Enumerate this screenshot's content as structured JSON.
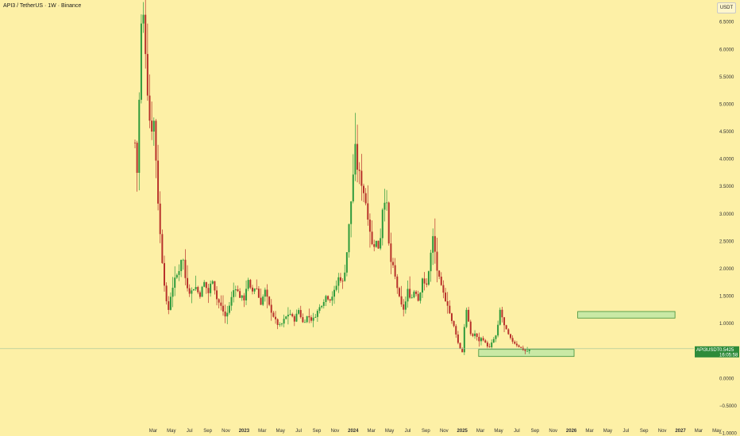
{
  "header": {
    "title": "API3 / TetherUS · 1W · Binance",
    "unit_label": "USDT"
  },
  "colors": {
    "background": "#fdf0a6",
    "up": "#2e9a3c",
    "down": "#b8322b",
    "zone_fill": "#c9e9a5",
    "zone_stroke": "#3d8f3a",
    "price_line": "#9ec49a",
    "price_label": "#2e8b3a"
  },
  "chart_data": {
    "type": "candlestick",
    "symbol": "API3USDT",
    "last_price": "0.5425",
    "countdown": "16:05:58",
    "last_price_value": 0.5425,
    "ylim": [
      -1.05,
      6.9
    ],
    "yticks": [
      {
        "v": 6.5,
        "label": "6.5000"
      },
      {
        "v": 6.0,
        "label": "6.0000"
      },
      {
        "v": 5.5,
        "label": "5.5000"
      },
      {
        "v": 5.0,
        "label": "5.0000"
      },
      {
        "v": 4.5,
        "label": "4.5000"
      },
      {
        "v": 4.0,
        "label": "4.0000"
      },
      {
        "v": 3.5,
        "label": "3.5000"
      },
      {
        "v": 3.0,
        "label": "3.0000"
      },
      {
        "v": 2.5,
        "label": "2.5000"
      },
      {
        "v": 2.0,
        "label": "2.0000"
      },
      {
        "v": 1.5,
        "label": "1.5000"
      },
      {
        "v": 1.0,
        "label": "1.0000"
      },
      {
        "v": 0.0,
        "label": "0.0000"
      },
      {
        "v": -0.5,
        "label": "−0.5000"
      },
      {
        "v": -1.0,
        "label": "−1.0000"
      }
    ],
    "xticks": [
      {
        "label": "Mar",
        "m": 2,
        "bold": false
      },
      {
        "label": "May",
        "m": 4,
        "bold": false
      },
      {
        "label": "Jul",
        "m": 6,
        "bold": false
      },
      {
        "label": "Sep",
        "m": 8,
        "bold": false
      },
      {
        "label": "Nov",
        "m": 10,
        "bold": false
      },
      {
        "label": "2023",
        "m": 12,
        "bold": true
      },
      {
        "label": "Mar",
        "m": 14,
        "bold": false
      },
      {
        "label": "May",
        "m": 16,
        "bold": false
      },
      {
        "label": "Jul",
        "m": 18,
        "bold": false
      },
      {
        "label": "Sep",
        "m": 20,
        "bold": false
      },
      {
        "label": "Nov",
        "m": 22,
        "bold": false
      },
      {
        "label": "2024",
        "m": 24,
        "bold": true
      },
      {
        "label": "Mar",
        "m": 26,
        "bold": false
      },
      {
        "label": "May",
        "m": 28,
        "bold": false
      },
      {
        "label": "Jul",
        "m": 30,
        "bold": false
      },
      {
        "label": "Sep",
        "m": 32,
        "bold": false
      },
      {
        "label": "Nov",
        "m": 34,
        "bold": false
      },
      {
        "label": "2025",
        "m": 36,
        "bold": true
      },
      {
        "label": "Mar",
        "m": 38,
        "bold": false
      },
      {
        "label": "May",
        "m": 40,
        "bold": false
      },
      {
        "label": "Jul",
        "m": 42,
        "bold": false
      },
      {
        "label": "Sep",
        "m": 44,
        "bold": false
      },
      {
        "label": "Nov",
        "m": 46,
        "bold": false
      },
      {
        "label": "2026",
        "m": 48,
        "bold": true
      },
      {
        "label": "Mar",
        "m": 50,
        "bold": false
      },
      {
        "label": "May",
        "m": 52,
        "bold": false
      },
      {
        "label": "Jul",
        "m": 54,
        "bold": false
      },
      {
        "label": "Sep",
        "m": 56,
        "bold": false
      },
      {
        "label": "Nov",
        "m": 58,
        "bold": false
      },
      {
        "label": "2027",
        "m": 60,
        "bold": true
      },
      {
        "label": "Mar",
        "m": 62,
        "bold": false
      },
      {
        "label": "May",
        "m": 64,
        "bold": false
      }
    ],
    "zones": [
      {
        "name": "support",
        "m_start": 37.8,
        "m_end": 48.3,
        "low": 0.4,
        "high": 0.53
      },
      {
        "name": "target",
        "m_start": 48.7,
        "m_end": 59.4,
        "low": 1.1,
        "high": 1.22
      }
    ],
    "anchors": [
      [
        0.0,
        4.3
      ],
      [
        0.3,
        3.6
      ],
      [
        0.6,
        6.3
      ],
      [
        0.85,
        6.6
      ],
      [
        1.05,
        6.5
      ],
      [
        1.25,
        5.6
      ],
      [
        1.5,
        5.0
      ],
      [
        1.75,
        4.4
      ],
      [
        2.0,
        4.9
      ],
      [
        2.25,
        4.2
      ],
      [
        2.55,
        3.2
      ],
      [
        2.85,
        2.4
      ],
      [
        3.15,
        1.9
      ],
      [
        3.4,
        1.4
      ],
      [
        3.7,
        1.25
      ],
      [
        4.0,
        1.6
      ],
      [
        4.4,
        1.8
      ],
      [
        4.8,
        1.95
      ],
      [
        5.2,
        2.3
      ],
      [
        5.6,
        1.75
      ],
      [
        6.1,
        1.55
      ],
      [
        6.6,
        1.7
      ],
      [
        7.1,
        1.5
      ],
      [
        7.6,
        1.75
      ],
      [
        8.1,
        1.55
      ],
      [
        8.5,
        1.85
      ],
      [
        9.0,
        1.45
      ],
      [
        9.5,
        1.3
      ],
      [
        10.0,
        1.1
      ],
      [
        10.5,
        1.4
      ],
      [
        11.0,
        1.7
      ],
      [
        11.5,
        1.5
      ],
      [
        12.0,
        1.45
      ],
      [
        12.4,
        1.8
      ],
      [
        12.8,
        1.55
      ],
      [
        13.3,
        1.7
      ],
      [
        13.8,
        1.35
      ],
      [
        14.3,
        1.6
      ],
      [
        14.8,
        1.3
      ],
      [
        15.2,
        1.15
      ],
      [
        15.6,
        1.0
      ],
      [
        16.0,
        0.95
      ],
      [
        16.5,
        1.1
      ],
      [
        17.0,
        1.2
      ],
      [
        17.5,
        1.05
      ],
      [
        18.0,
        1.25
      ],
      [
        18.5,
        1.0
      ],
      [
        19.0,
        1.15
      ],
      [
        19.5,
        1.05
      ],
      [
        20.0,
        1.2
      ],
      [
        20.5,
        1.35
      ],
      [
        21.0,
        1.5
      ],
      [
        21.5,
        1.45
      ],
      [
        22.0,
        1.6
      ],
      [
        22.5,
        1.9
      ],
      [
        22.8,
        1.7
      ],
      [
        23.2,
        2.1
      ],
      [
        23.6,
        2.9
      ],
      [
        23.9,
        3.5
      ],
      [
        24.2,
        4.2
      ],
      [
        24.5,
        3.8
      ],
      [
        24.9,
        3.6
      ],
      [
        25.3,
        3.3
      ],
      [
        25.7,
        2.9
      ],
      [
        26.1,
        2.4
      ],
      [
        26.5,
        2.5
      ],
      [
        26.9,
        2.35
      ],
      [
        27.2,
        3.1
      ],
      [
        27.6,
        3.4
      ],
      [
        28.0,
        2.2
      ],
      [
        28.4,
        2.0
      ],
      [
        28.8,
        1.7
      ],
      [
        29.2,
        1.35
      ],
      [
        29.6,
        1.25
      ],
      [
        30.0,
        1.6
      ],
      [
        30.4,
        1.45
      ],
      [
        30.8,
        1.65
      ],
      [
        31.2,
        1.4
      ],
      [
        31.6,
        1.85
      ],
      [
        32.0,
        1.6
      ],
      [
        32.4,
        2.1
      ],
      [
        32.8,
        2.6
      ],
      [
        33.2,
        2.0
      ],
      [
        33.6,
        1.7
      ],
      [
        34.0,
        1.5
      ],
      [
        34.4,
        1.35
      ],
      [
        34.8,
        1.05
      ],
      [
        35.2,
        0.9
      ],
      [
        35.6,
        0.6
      ],
      [
        36.0,
        0.48
      ],
      [
        36.4,
        1.3
      ],
      [
        36.7,
        1.0
      ],
      [
        37.0,
        0.75
      ],
      [
        37.4,
        0.82
      ],
      [
        37.8,
        0.68
      ],
      [
        38.2,
        0.75
      ],
      [
        38.6,
        0.62
      ],
      [
        39.0,
        0.56
      ],
      [
        39.4,
        0.7
      ],
      [
        39.8,
        0.8
      ],
      [
        40.2,
        1.3
      ],
      [
        40.5,
        1.0
      ],
      [
        40.9,
        0.85
      ],
      [
        41.3,
        0.72
      ],
      [
        41.7,
        0.65
      ],
      [
        42.1,
        0.6
      ],
      [
        42.5,
        0.55
      ],
      [
        42.9,
        0.5
      ],
      [
        43.25,
        0.5
      ],
      [
        43.55,
        0.54
      ]
    ],
    "candles": []
  }
}
